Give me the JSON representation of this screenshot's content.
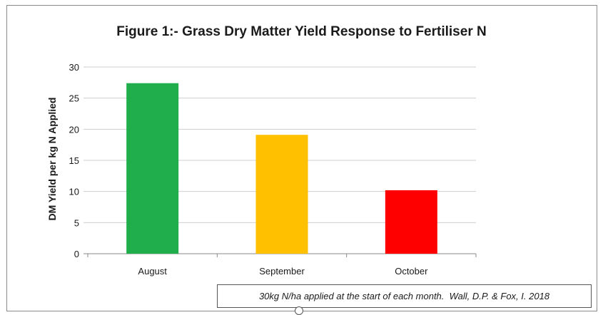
{
  "chart_data": {
    "type": "bar",
    "title": "Figure 1:- Grass Dry Matter Yield Response to Fertiliser N",
    "xlabel": "",
    "ylabel": "DM Yield per kg N Applied",
    "categories": [
      "August",
      "September",
      "October"
    ],
    "values": [
      27.4,
      19.1,
      10.2
    ],
    "colors": [
      "#1fae4b",
      "#ffc000",
      "#ff0000"
    ],
    "ylim": [
      0,
      30
    ],
    "yticks": [
      0,
      5,
      10,
      15,
      20,
      25,
      30
    ],
    "grid": true,
    "legend": "none"
  },
  "note": "30kg N/ha applied at the start of each month.  Wall, D.P. & Fox, I. 2018"
}
